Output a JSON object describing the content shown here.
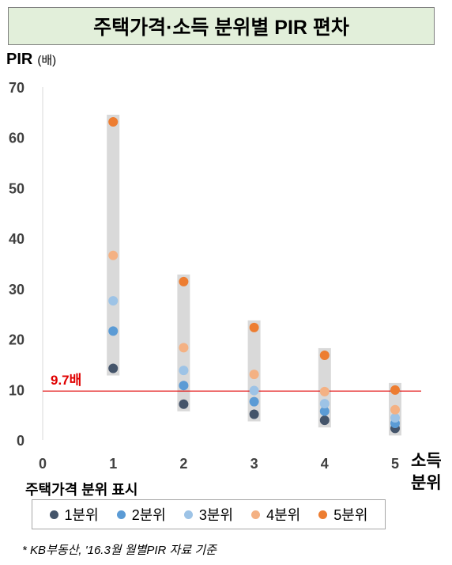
{
  "title": "주택가격·소득 분위별 PIR 편차",
  "ylabel": "PIR",
  "ylabel_unit": "(배)",
  "xcaption_line1": "소득",
  "xcaption_line2": "분위",
  "xtitle": "주택가격 분위 표시",
  "footnote": "* KB부동산, '16.3월 월별PIR 자료 기준",
  "chart_data": {
    "type": "scatter",
    "x": [
      1,
      2,
      3,
      4,
      5
    ],
    "xticks": [
      "0",
      "1",
      "2",
      "3",
      "4",
      "5"
    ],
    "xlim": [
      0,
      5
    ],
    "ylim": [
      0,
      70
    ],
    "yticks": [
      0,
      10,
      20,
      30,
      40,
      50,
      60,
      70
    ],
    "grid": false,
    "reference_line": {
      "value": 9.7,
      "label": "9.7배",
      "color": "#e00000"
    },
    "range_bars": [
      {
        "x": 1,
        "low": 14.2,
        "high": 63.1
      },
      {
        "x": 2,
        "low": 7.1,
        "high": 31.4
      },
      {
        "x": 3,
        "low": 5.1,
        "high": 22.3
      },
      {
        "x": 4,
        "low": 3.9,
        "high": 16.8
      },
      {
        "x": 5,
        "low": 2.3,
        "high": 9.9
      }
    ],
    "series": [
      {
        "name": "1분위",
        "color": "#44546a",
        "values": [
          14.2,
          7.1,
          5.1,
          3.9,
          2.3
        ]
      },
      {
        "name": "2분위",
        "color": "#5b9bd5",
        "values": [
          21.6,
          10.8,
          7.6,
          5.7,
          3.3
        ]
      },
      {
        "name": "3분위",
        "color": "#9dc3e6",
        "values": [
          27.6,
          13.8,
          9.8,
          7.2,
          4.4
        ]
      },
      {
        "name": "4분위",
        "color": "#f4b183",
        "values": [
          36.6,
          18.3,
          13.0,
          9.6,
          6.0
        ]
      },
      {
        "name": "5분위",
        "color": "#ed7d31",
        "values": [
          63.1,
          31.4,
          22.3,
          16.8,
          9.9
        ]
      }
    ]
  }
}
